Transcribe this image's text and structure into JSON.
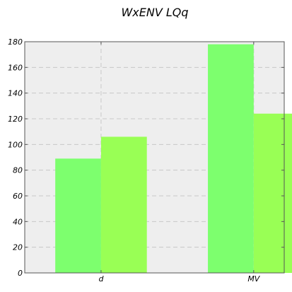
{
  "chart_data": {
    "type": "bar",
    "title": "WxENV LQq",
    "xlabel": "",
    "ylabel": "",
    "categories": [
      "d",
      "MV"
    ],
    "series": [
      {
        "values": [
          89,
          178
        ],
        "color": "#7dff6e"
      },
      {
        "values": [
          106,
          124
        ],
        "color": "#99ff55"
      }
    ],
    "ylim": [
      0,
      180
    ],
    "yticks": [
      "0",
      "20",
      "40",
      "60",
      "80",
      "100",
      "120",
      "140",
      "160",
      "180"
    ],
    "grid": true,
    "legend": "none",
    "colors": {
      "plot_background": "#eeeeee",
      "grid": "#c8c8c8",
      "axis": "#555555"
    }
  }
}
